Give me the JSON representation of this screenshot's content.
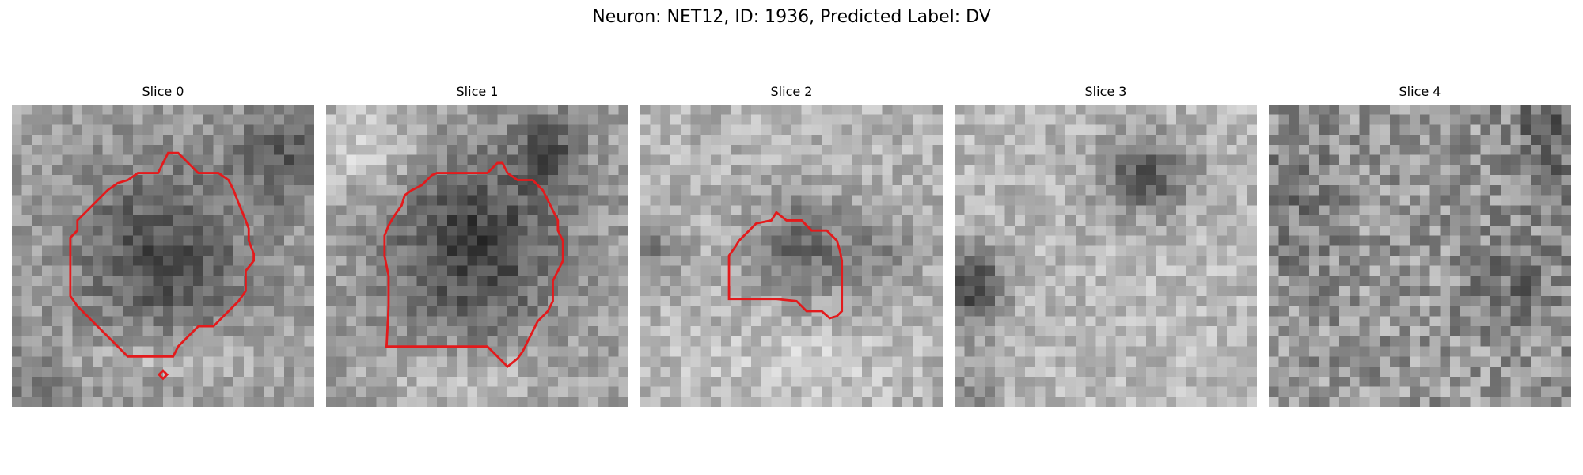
{
  "figure": {
    "title": "Neuron: NET12, ID: 1936, Predicted Label: DV",
    "contour_color": "#e31a1c"
  },
  "panels": [
    {
      "label": "Slice 0",
      "has_contour": true
    },
    {
      "label": "Slice 1",
      "has_contour": true
    },
    {
      "label": "Slice 2",
      "has_contour": true
    },
    {
      "label": "Slice 3",
      "has_contour": false
    },
    {
      "label": "Slice 4",
      "has_contour": false
    }
  ]
}
